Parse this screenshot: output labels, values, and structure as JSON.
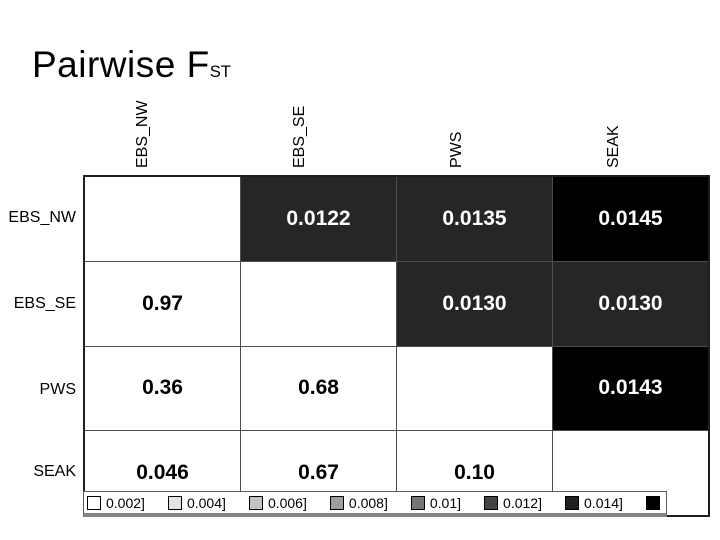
{
  "title": {
    "main": "Pairwise F",
    "sub": "ST"
  },
  "matrix": {
    "col_headers": [
      "EBS_NW",
      "EBS_SE",
      "PWS",
      "SEAK"
    ],
    "row_headers": [
      "EBS_NW",
      "EBS_SE",
      "PWS",
      "SEAK"
    ],
    "cells": [
      [
        {
          "text": "",
          "bg": "white"
        },
        {
          "text": "0.0122",
          "bg": "dark"
        },
        {
          "text": "0.0135",
          "bg": "dark"
        },
        {
          "text": "0.0145",
          "bg": "black"
        }
      ],
      [
        {
          "text": "0.97",
          "bg": "white"
        },
        {
          "text": "",
          "bg": "white"
        },
        {
          "text": "0.0130",
          "bg": "dark"
        },
        {
          "text": "0.0130",
          "bg": "dark"
        }
      ],
      [
        {
          "text": "0.36",
          "bg": "white"
        },
        {
          "text": "0.68",
          "bg": "white"
        },
        {
          "text": "",
          "bg": "white"
        },
        {
          "text": "0.0143",
          "bg": "black"
        }
      ],
      [
        {
          "text": "0.046",
          "bg": "white"
        },
        {
          "text": "0.67",
          "bg": "white"
        },
        {
          "text": "0.10",
          "bg": "white"
        },
        {
          "text": "",
          "bg": "white"
        }
      ]
    ]
  },
  "colors": {
    "white": "#ffffff",
    "dark": "#262626",
    "black": "#000000",
    "text_on_dark": "#ffffff",
    "text_on_light": "#000000"
  },
  "legend": {
    "items": [
      {
        "label": "0.002]",
        "color": "#ffffff"
      },
      {
        "label": "0.004]",
        "color": "#e3e3e3"
      },
      {
        "label": "0.006]",
        "color": "#c4c4c4"
      },
      {
        "label": "0.008]",
        "color": "#9e9e9e"
      },
      {
        "label": "0.01]",
        "color": "#757575"
      },
      {
        "label": "0.012]",
        "color": "#454545"
      },
      {
        "label": "0.014]",
        "color": "#1f1f1f"
      },
      {
        "label": "",
        "color": "#000000"
      }
    ]
  },
  "chart_data": {
    "type": "heatmap",
    "title": "Pairwise FST",
    "categories": [
      "EBS_NW",
      "EBS_SE",
      "PWS",
      "SEAK"
    ],
    "upper_triangle_values": [
      {
        "row": "EBS_NW",
        "col": "EBS_SE",
        "value": 0.0122
      },
      {
        "row": "EBS_NW",
        "col": "PWS",
        "value": 0.0135
      },
      {
        "row": "EBS_NW",
        "col": "SEAK",
        "value": 0.0145
      },
      {
        "row": "EBS_SE",
        "col": "PWS",
        "value": 0.013
      },
      {
        "row": "EBS_SE",
        "col": "SEAK",
        "value": 0.013
      },
      {
        "row": "PWS",
        "col": "SEAK",
        "value": 0.0143
      }
    ],
    "lower_triangle_values": [
      {
        "row": "EBS_SE",
        "col": "EBS_NW",
        "value": 0.97
      },
      {
        "row": "PWS",
        "col": "EBS_NW",
        "value": 0.36
      },
      {
        "row": "PWS",
        "col": "EBS_SE",
        "value": 0.68
      },
      {
        "row": "SEAK",
        "col": "EBS_NW",
        "value": 0.046
      },
      {
        "row": "SEAK",
        "col": "EBS_SE",
        "value": 0.67
      },
      {
        "row": "SEAK",
        "col": "PWS",
        "value": 0.1
      }
    ],
    "legend_bins": [
      "0.002]",
      "0.004]",
      "0.006]",
      "0.008]",
      "0.01]",
      "0.012]",
      "0.014]"
    ],
    "legend_position": "bottom",
    "color_scale": "white-to-black grayscale, darker = higher FST"
  }
}
